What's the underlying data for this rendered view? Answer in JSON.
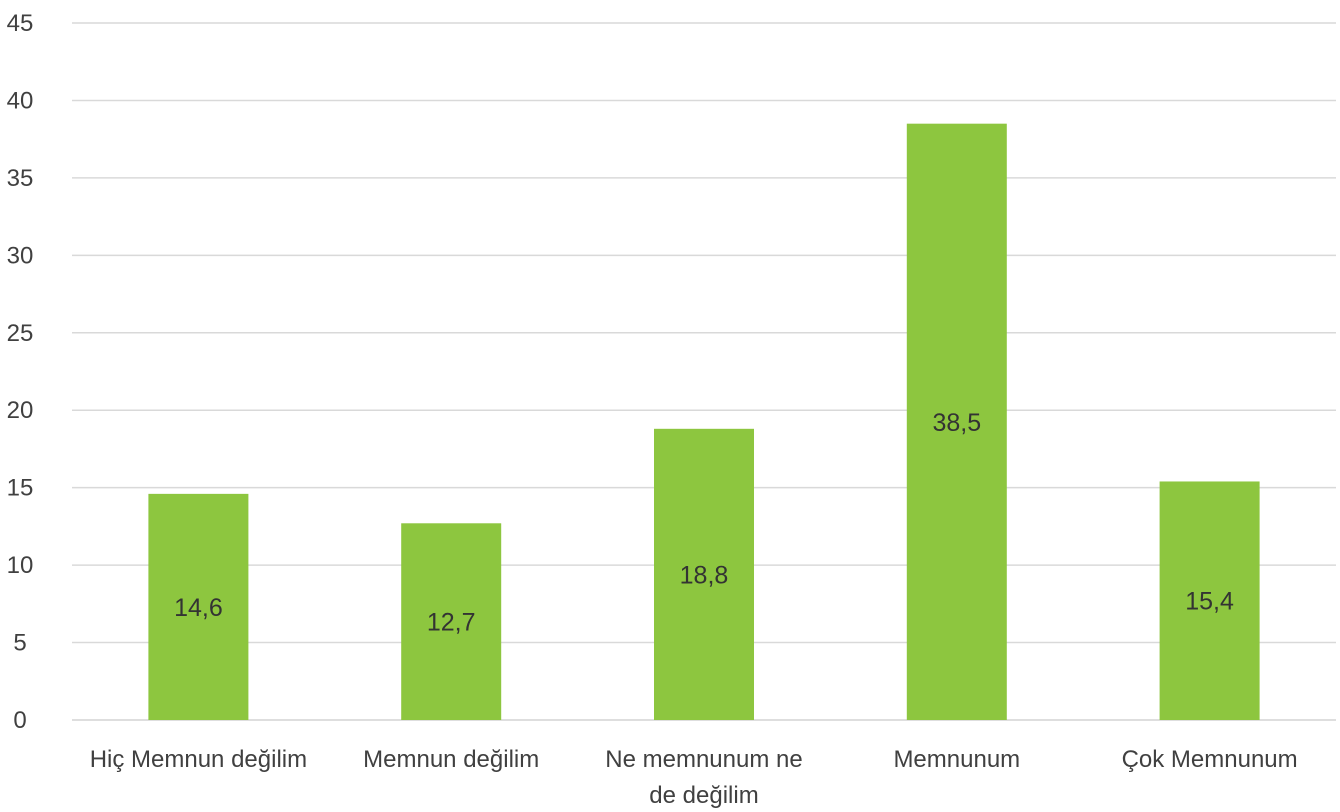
{
  "chart_data": {
    "type": "bar",
    "categories": [
      [
        "Hiç Memnun değilim"
      ],
      [
        "Memnun değilim"
      ],
      [
        "Ne memnunum ne",
        "de değilim"
      ],
      [
        "Memnunum"
      ],
      [
        "Çok Memnunum"
      ]
    ],
    "values": [
      14.6,
      12.7,
      18.8,
      38.5,
      15.4
    ],
    "data_labels": [
      "14,6",
      "12,7",
      "18,8",
      "38,5",
      "15,4"
    ],
    "yticks": [
      0,
      5,
      10,
      15,
      20,
      25,
      30,
      35,
      40,
      45
    ],
    "ylim": [
      0,
      45
    ],
    "title": "",
    "xlabel": "",
    "ylabel": "",
    "grid": true,
    "legend": "none",
    "colors": {
      "bar": "#8DC63F",
      "grid": "#D9D9D9",
      "text": "#404040"
    }
  }
}
